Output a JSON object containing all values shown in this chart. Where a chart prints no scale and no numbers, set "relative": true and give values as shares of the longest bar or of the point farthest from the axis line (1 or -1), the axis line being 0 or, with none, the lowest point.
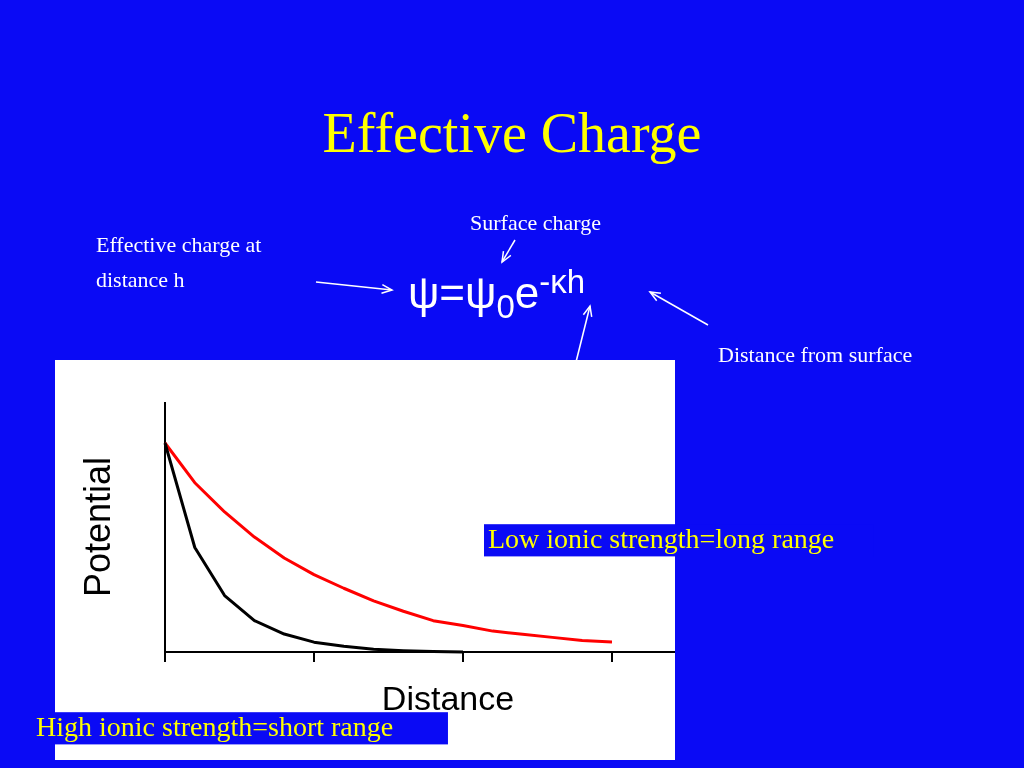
{
  "chart_data": {
    "type": "line",
    "title": "Effective Charge",
    "xlabel": "Distance",
    "ylabel": "Potential",
    "relative": true,
    "categories": [
      null,
      null,
      null,
      null,
      null,
      null,
      null,
      null,
      null,
      null,
      null,
      null,
      null,
      null,
      null,
      null
    ],
    "grid": false,
    "marker": "none",
    "line_style": "solid",
    "annotations": [
      "Surface charge",
      "Effective charge at distance  h",
      "Distance from surface",
      "ψ=ψ$_{0}$e$^{-κh}$",
      "Low ionic strength=long range",
      "High ionic strength=short range"
    ],
    "series": [
      {
        "color": "#ff0000",
        "values": [
          1,
          0.81,
          0.67,
          0.55,
          0.45,
          0.37,
          0.305,
          0.245,
          0.195,
          0.15,
          0.127,
          0.1,
          0.085,
          0.07,
          0.055,
          0.048
        ]
      },
      {
        "color": "#000000",
        "values": [
          1,
          0.5,
          0.27,
          0.15,
          0.086,
          0.047,
          0.027,
          0.013,
          0.006,
          0.002,
          0,
          null,
          null,
          null,
          null,
          null
        ]
      }
    ]
  }
}
